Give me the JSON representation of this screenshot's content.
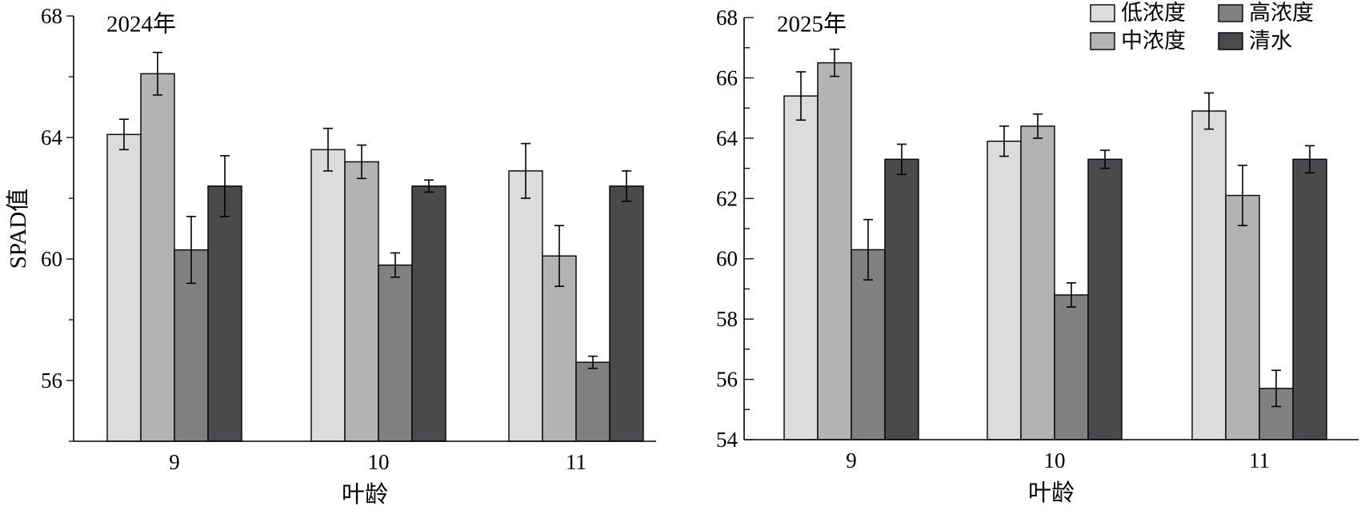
{
  "chart_data": [
    {
      "type": "bar",
      "title": "2024年",
      "xlabel": "叶龄",
      "ylabel": "SPAD值",
      "ylim": [
        54,
        68
      ],
      "yticks_major": [
        56,
        60,
        64,
        68
      ],
      "yticks_minor": [
        54,
        58,
        62,
        66
      ],
      "categories": [
        "9",
        "10",
        "11"
      ],
      "series": [
        {
          "name": "低浓度",
          "color": "#dcdcdc",
          "values": [
            64.1,
            63.6,
            62.9
          ],
          "errors": [
            0.5,
            0.7,
            0.9
          ]
        },
        {
          "name": "中浓度",
          "color": "#b3b3b3",
          "values": [
            66.1,
            63.2,
            60.1
          ],
          "errors": [
            0.7,
            0.55,
            1.0
          ]
        },
        {
          "name": "高浓度",
          "color": "#808080",
          "values": [
            60.3,
            59.8,
            56.6
          ],
          "errors": [
            1.1,
            0.4,
            0.2
          ]
        },
        {
          "name": "清水",
          "color": "#4a4a4c",
          "values": [
            62.4,
            62.4,
            62.4
          ],
          "errors": [
            1.0,
            0.2,
            0.5
          ]
        }
      ]
    },
    {
      "type": "bar",
      "title": "2025年",
      "xlabel": "叶龄",
      "ylabel": "",
      "ylim": [
        54,
        68
      ],
      "yticks_major": [
        54,
        56,
        58,
        60,
        62,
        64,
        66,
        68
      ],
      "yticks_minor": [
        55,
        57,
        59,
        61,
        63,
        65,
        67
      ],
      "categories": [
        "9",
        "10",
        "11"
      ],
      "legend": "top-right",
      "series": [
        {
          "name": "低浓度",
          "color": "#dcdcdc",
          "values": [
            65.4,
            63.9,
            64.9
          ],
          "errors": [
            0.8,
            0.5,
            0.6
          ]
        },
        {
          "name": "中浓度",
          "color": "#b3b3b3",
          "values": [
            66.5,
            64.4,
            62.1
          ],
          "errors": [
            0.45,
            0.4,
            1.0
          ]
        },
        {
          "name": "高浓度",
          "color": "#808080",
          "values": [
            60.3,
            58.8,
            55.7
          ],
          "errors": [
            1.0,
            0.4,
            0.6
          ]
        },
        {
          "name": "清水",
          "color": "#4a4a4c",
          "values": [
            63.3,
            63.3,
            63.3
          ],
          "errors": [
            0.5,
            0.3,
            0.45
          ]
        }
      ]
    }
  ]
}
